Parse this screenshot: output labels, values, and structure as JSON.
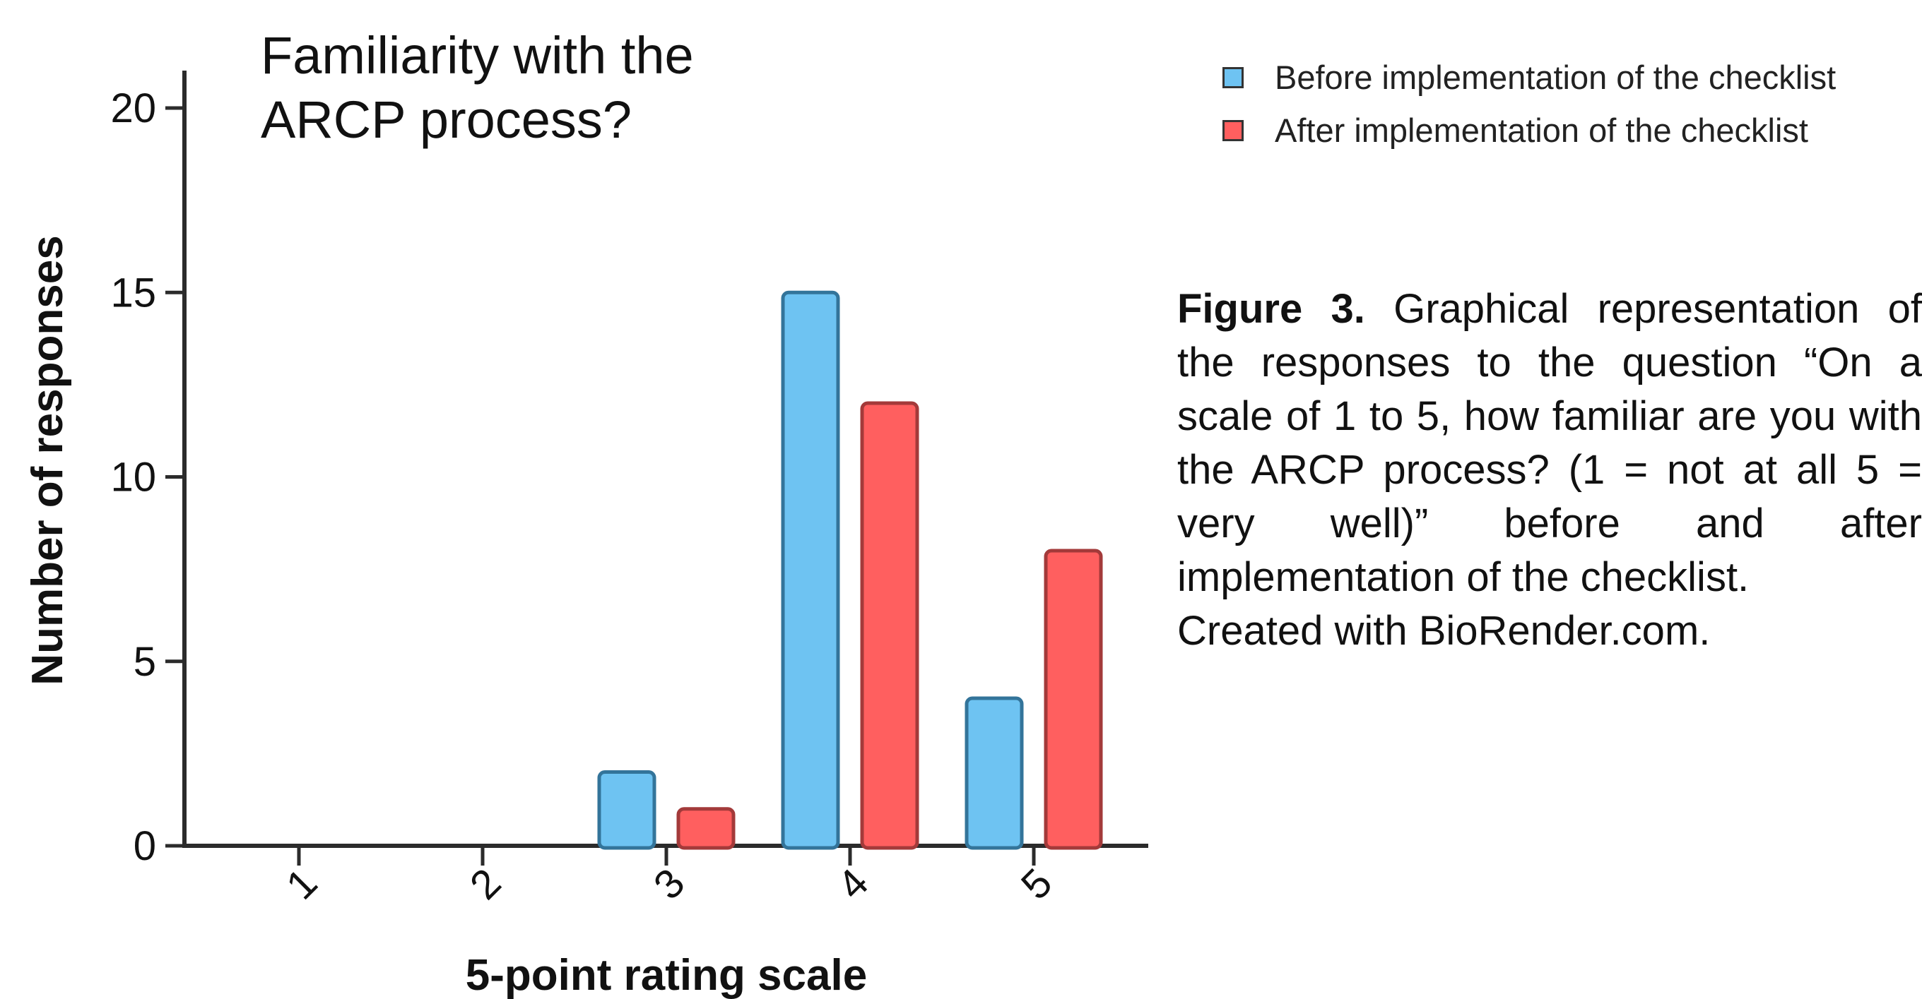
{
  "chart_data": {
    "type": "bar",
    "title": "Familiarity with the ARCP process?",
    "title_lines": [
      "Familiarity with the",
      "ARCP process?"
    ],
    "xlabel": "5-point rating scale",
    "ylabel": "Number of responses",
    "categories": [
      "1",
      "2",
      "3",
      "4",
      "5"
    ],
    "ylim": [
      0,
      20
    ],
    "yticks": [
      0,
      5,
      10,
      15,
      20
    ],
    "legend_position": "top-right",
    "series": [
      {
        "name": "Before implementation of the checklist",
        "color": "#6EC3F2",
        "stroke": "#33749A",
        "values": [
          0,
          0,
          2,
          15,
          4
        ]
      },
      {
        "name": "After implementation of the checklist",
        "color": "#FF5F5F",
        "stroke": "#A33A3A",
        "values": [
          0,
          0,
          1,
          12,
          8
        ]
      }
    ]
  },
  "caption": {
    "label": "Figure 3.",
    "text": "Graphical representation of the responses to the question “On a scale of 1 to 5, how familiar are you with the ARCP process? (1 = not at all 5 = very well)” before and after implementation of the checklist.",
    "credit": "Created with BioRender.com."
  }
}
